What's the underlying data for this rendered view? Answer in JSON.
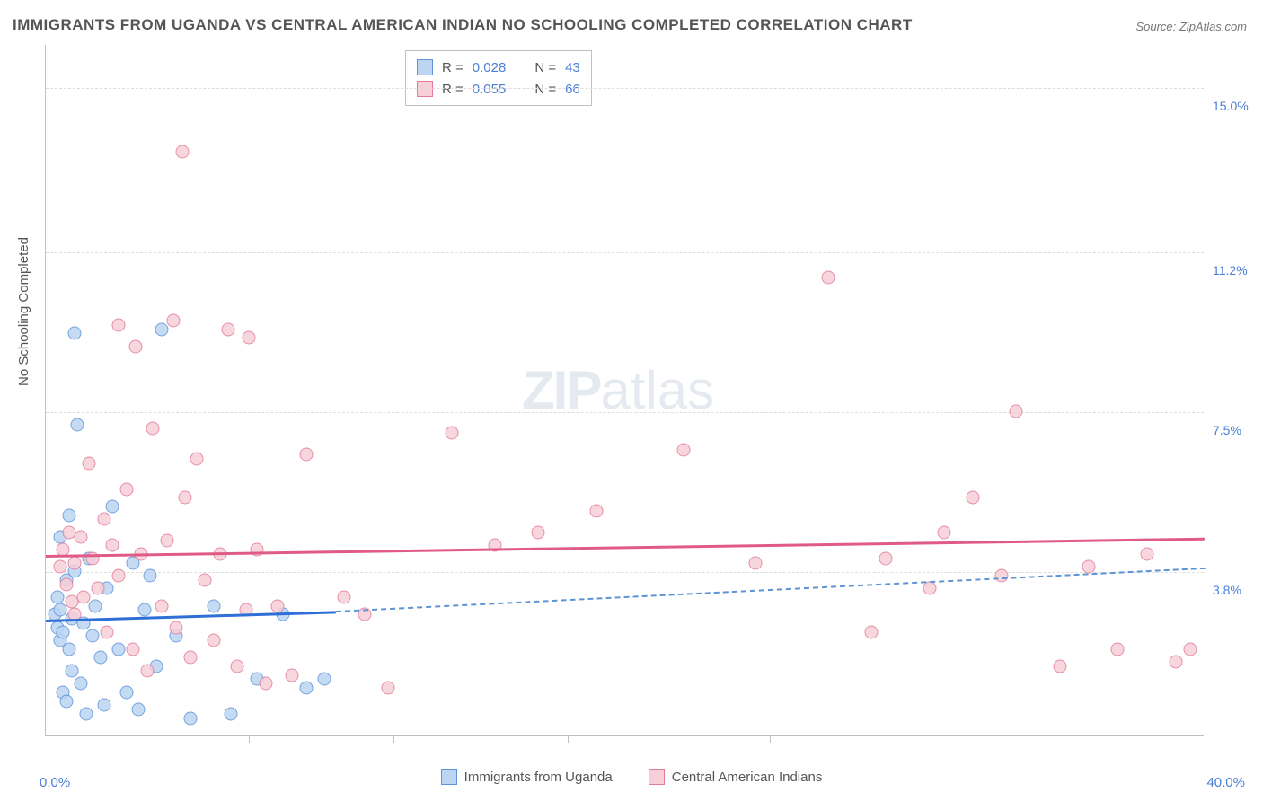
{
  "title": "IMMIGRANTS FROM UGANDA VS CENTRAL AMERICAN INDIAN NO SCHOOLING COMPLETED CORRELATION CHART",
  "source": "Source: ZipAtlas.com",
  "ylabel": "No Schooling Completed",
  "watermark_zip": "ZIP",
  "watermark_atlas": "atlas",
  "chart": {
    "type": "scatter",
    "xlim": [
      0,
      40
    ],
    "ylim": [
      0,
      16
    ],
    "x_axis_labels": {
      "low": "0.0%",
      "high": "40.0%"
    },
    "y_right_ticks": [
      {
        "v": 3.8,
        "label": "3.8%"
      },
      {
        "v": 7.5,
        "label": "7.5%"
      },
      {
        "v": 11.2,
        "label": "11.2%"
      },
      {
        "v": 15.0,
        "label": "15.0%"
      }
    ],
    "x_tick_marks": [
      7,
      12,
      18,
      25,
      33
    ],
    "background_color": "#ffffff",
    "grid_color": "#dddddd",
    "series": [
      {
        "name": "Immigrants from Uganda",
        "marker_fill": "#bcd5f2",
        "marker_stroke": "#5e93d8",
        "marker_size": 15,
        "line_color": "#2e6fd6",
        "line_dash_color": "#5e93d8",
        "R": "0.028",
        "N": "43",
        "trend": {
          "x1": 0,
          "y1": 2.7,
          "x2_solid": 10,
          "y2_solid": 2.9,
          "x2_dash": 40,
          "y2_dash": 3.9
        },
        "points": [
          [
            0.3,
            2.8
          ],
          [
            0.4,
            3.2
          ],
          [
            0.4,
            2.5
          ],
          [
            0.5,
            2.2
          ],
          [
            0.5,
            4.6
          ],
          [
            0.5,
            2.9
          ],
          [
            0.6,
            1.0
          ],
          [
            0.6,
            2.4
          ],
          [
            0.7,
            0.8
          ],
          [
            0.7,
            3.6
          ],
          [
            0.8,
            5.1
          ],
          [
            0.8,
            2.0
          ],
          [
            0.9,
            1.5
          ],
          [
            0.9,
            2.7
          ],
          [
            1.0,
            3.8
          ],
          [
            1.0,
            9.3
          ],
          [
            1.1,
            7.2
          ],
          [
            1.2,
            1.2
          ],
          [
            1.3,
            2.6
          ],
          [
            1.4,
            0.5
          ],
          [
            1.5,
            4.1
          ],
          [
            1.6,
            2.3
          ],
          [
            1.7,
            3.0
          ],
          [
            1.9,
            1.8
          ],
          [
            2.0,
            0.7
          ],
          [
            2.1,
            3.4
          ],
          [
            2.3,
            5.3
          ],
          [
            2.5,
            2.0
          ],
          [
            2.8,
            1.0
          ],
          [
            3.0,
            4.0
          ],
          [
            3.2,
            0.6
          ],
          [
            3.4,
            2.9
          ],
          [
            3.6,
            3.7
          ],
          [
            3.8,
            1.6
          ],
          [
            4.0,
            9.4
          ],
          [
            4.5,
            2.3
          ],
          [
            5.0,
            0.4
          ],
          [
            5.8,
            3.0
          ],
          [
            6.4,
            0.5
          ],
          [
            7.3,
            1.3
          ],
          [
            8.2,
            2.8
          ],
          [
            9.0,
            1.1
          ],
          [
            9.6,
            1.3
          ]
        ]
      },
      {
        "name": "Central American Indians",
        "marker_fill": "#f6cfd8",
        "marker_stroke": "#e47a9b",
        "marker_size": 15,
        "line_color": "#e05a86",
        "R": "0.055",
        "N": "66",
        "trend": {
          "x1": 0,
          "y1": 4.2,
          "x2_solid": 40,
          "y2_solid": 4.6
        },
        "points": [
          [
            0.5,
            3.9
          ],
          [
            0.6,
            4.3
          ],
          [
            0.7,
            3.5
          ],
          [
            0.8,
            4.7
          ],
          [
            0.9,
            3.1
          ],
          [
            1.0,
            4.0
          ],
          [
            1.0,
            2.8
          ],
          [
            1.2,
            4.6
          ],
          [
            1.3,
            3.2
          ],
          [
            1.5,
            6.3
          ],
          [
            1.6,
            4.1
          ],
          [
            1.8,
            3.4
          ],
          [
            2.0,
            5.0
          ],
          [
            2.1,
            2.4
          ],
          [
            2.3,
            4.4
          ],
          [
            2.5,
            9.5
          ],
          [
            2.5,
            3.7
          ],
          [
            2.8,
            5.7
          ],
          [
            3.0,
            2.0
          ],
          [
            3.1,
            9.0
          ],
          [
            3.3,
            4.2
          ],
          [
            3.5,
            1.5
          ],
          [
            3.7,
            7.1
          ],
          [
            4.0,
            3.0
          ],
          [
            4.2,
            4.5
          ],
          [
            4.4,
            9.6
          ],
          [
            4.5,
            2.5
          ],
          [
            4.7,
            13.5
          ],
          [
            4.8,
            5.5
          ],
          [
            5.0,
            1.8
          ],
          [
            5.2,
            6.4
          ],
          [
            5.5,
            3.6
          ],
          [
            5.8,
            2.2
          ],
          [
            6.0,
            4.2
          ],
          [
            6.3,
            9.4
          ],
          [
            6.6,
            1.6
          ],
          [
            6.9,
            2.9
          ],
          [
            7.0,
            9.2
          ],
          [
            7.3,
            4.3
          ],
          [
            7.6,
            1.2
          ],
          [
            8.0,
            3.0
          ],
          [
            8.5,
            1.4
          ],
          [
            9.0,
            6.5
          ],
          [
            10.3,
            3.2
          ],
          [
            11.0,
            2.8
          ],
          [
            11.8,
            1.1
          ],
          [
            14.0,
            7.0
          ],
          [
            15.5,
            4.4
          ],
          [
            17.0,
            4.7
          ],
          [
            19.0,
            5.2
          ],
          [
            22.0,
            6.6
          ],
          [
            24.5,
            4.0
          ],
          [
            27.0,
            10.6
          ],
          [
            28.5,
            2.4
          ],
          [
            29.0,
            4.1
          ],
          [
            30.5,
            3.4
          ],
          [
            31.0,
            4.7
          ],
          [
            32.0,
            5.5
          ],
          [
            33.0,
            3.7
          ],
          [
            33.5,
            7.5
          ],
          [
            35.0,
            1.6
          ],
          [
            36.0,
            3.9
          ],
          [
            37.0,
            2.0
          ],
          [
            38.0,
            4.2
          ],
          [
            39.0,
            1.7
          ],
          [
            39.5,
            2.0
          ]
        ]
      }
    ]
  },
  "legend_top": {
    "rows": [
      {
        "swatch_fill": "#bcd5f2",
        "swatch_stroke": "#5e93d8",
        "r_label": "R =",
        "r_val": "0.028",
        "n_label": "N =",
        "n_val": "43"
      },
      {
        "swatch_fill": "#f6cfd8",
        "swatch_stroke": "#e47a9b",
        "r_label": "R =",
        "r_val": "0.055",
        "n_label": "N =",
        "n_val": "66"
      }
    ]
  },
  "legend_bottom": [
    {
      "swatch_fill": "#bcd5f2",
      "swatch_stroke": "#5e93d8",
      "label": "Immigrants from Uganda"
    },
    {
      "swatch_fill": "#f6cfd8",
      "swatch_stroke": "#e47a9b",
      "label": "Central American Indians"
    }
  ]
}
